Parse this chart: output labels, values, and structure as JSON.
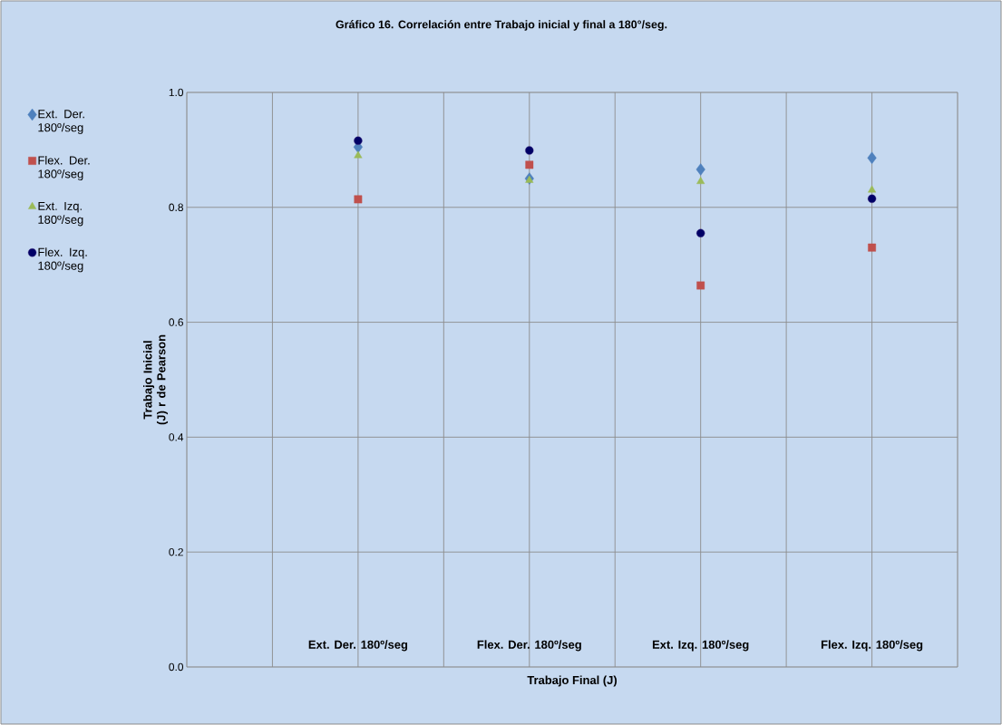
{
  "chart_data": {
    "type": "scatter",
    "title": "Gráfico 16. Correlación entre Trabajo inicial y final a 180°/seg.",
    "xlabel": "Trabajo Final (J)",
    "ylabel": "Trabajo Inicial (J) r de Pearson",
    "categories": [
      "Ext. Der. 180º/seg",
      "Flex. Der. 180º/seg",
      "Ext. Izq. 180º/seg",
      "Flex. Izq. 180º/seg"
    ],
    "series": [
      {
        "name": "Ext. Der. 180º/seg",
        "color": "#4f81bd",
        "marker": "diamond",
        "values": [
          0.905,
          0.85,
          0.866,
          0.886
        ]
      },
      {
        "name": "Flex. Der. 180º/seg",
        "color": "#c0504d",
        "marker": "square",
        "values": [
          0.814,
          0.874,
          0.664,
          0.73
        ]
      },
      {
        "name": "Ext. Izq. 180º/seg",
        "color": "#9bbb59",
        "marker": "triangle",
        "values": [
          0.89,
          0.847,
          0.845,
          0.83
        ]
      },
      {
        "name": "Flex. Izq. 180º/seg",
        "color": "#000066",
        "marker": "circle",
        "values": [
          0.916,
          0.899,
          0.755,
          0.815
        ]
      }
    ],
    "ylim": [
      0,
      1
    ],
    "yticks": [
      {
        "value": 0,
        "label": "0.0"
      },
      {
        "value": 0.2,
        "label": "0.2"
      },
      {
        "value": 0.4,
        "label": "0.4"
      },
      {
        "value": 0.6,
        "label": "0.6"
      },
      {
        "value": 0.8,
        "label": "0.8"
      },
      {
        "value": 1,
        "label": "1.0"
      }
    ],
    "grid": true,
    "legend": "left"
  }
}
